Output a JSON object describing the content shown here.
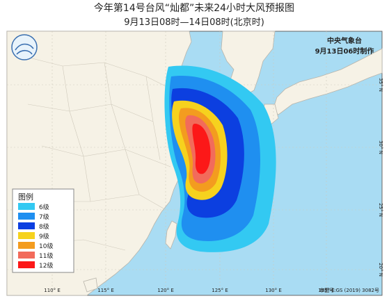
{
  "header": {
    "title": "今年第14号台风“灿都”未来24小时大风预报图",
    "subtitle": "9月13日08时—14日08时(北京时)"
  },
  "agency": {
    "name": "中央气象台",
    "time": "9月13日06时制作"
  },
  "legend": {
    "title": "图例",
    "items": [
      {
        "label": "6级",
        "color": "#33c9f2"
      },
      {
        "label": "7级",
        "color": "#1f8ff0"
      },
      {
        "label": "8级",
        "color": "#0c3fe0"
      },
      {
        "label": "9级",
        "color": "#f6d21e"
      },
      {
        "label": "10级",
        "color": "#f39c1f"
      },
      {
        "label": "11级",
        "color": "#f26b5b"
      },
      {
        "label": "12级",
        "color": "#fc1818"
      }
    ]
  },
  "axes": {
    "lon": [
      "110° E",
      "115° E",
      "120° E",
      "125° E",
      "130° E",
      "135° E"
    ],
    "lat": [
      "35° N",
      "30° N",
      "25° N",
      "20° N"
    ]
  },
  "footer": {
    "approval": "审图号:GS (2019) 3082号"
  }
}
